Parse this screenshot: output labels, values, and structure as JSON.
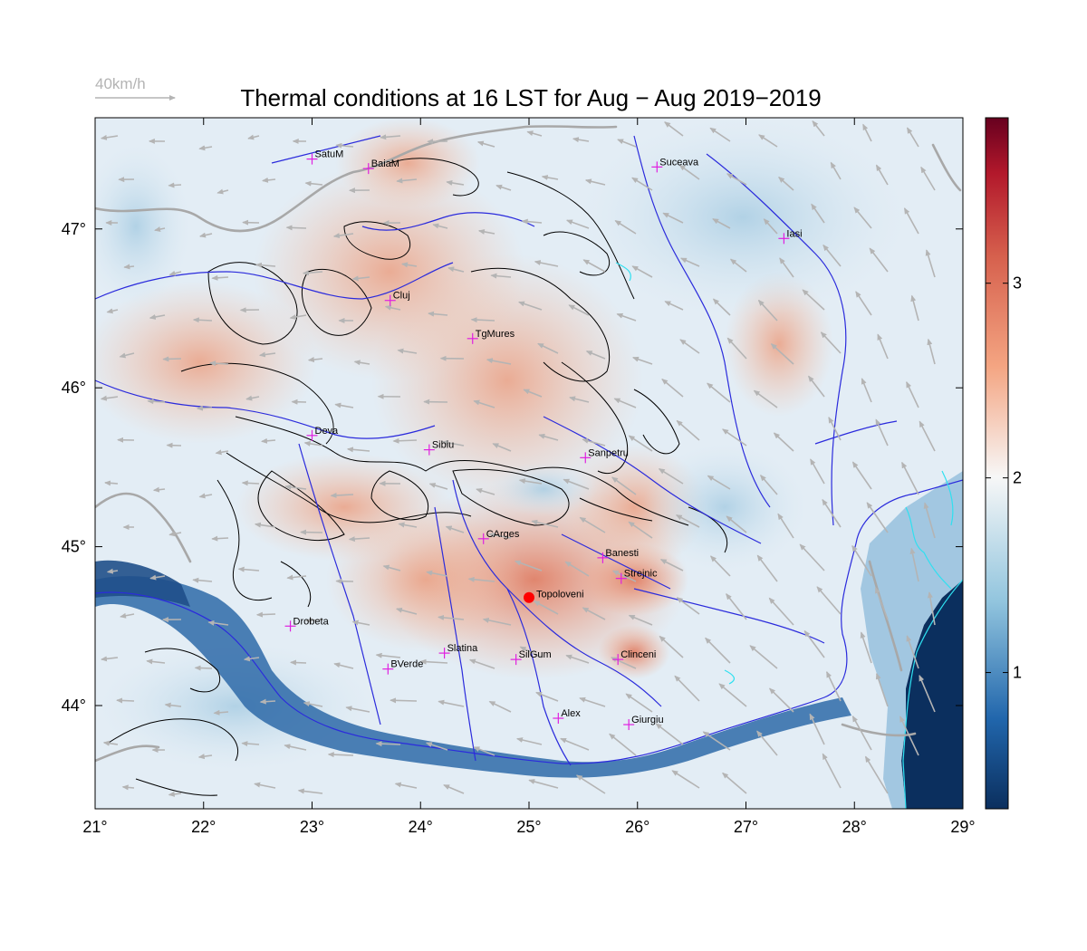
{
  "title": "Thermal conditions at 16 LST for Aug − Aug  2019−2019",
  "wind_legend": {
    "label": "40km/h"
  },
  "map": {
    "lon_range": [
      21,
      29
    ],
    "lat_range": [
      43.35,
      47.7
    ],
    "x_ticks": [
      "21°",
      "22°",
      "23°",
      "24°",
      "25°",
      "26°",
      "27°",
      "28°",
      "29°"
    ],
    "x_tick_values": [
      21,
      22,
      23,
      24,
      25,
      26,
      27,
      28,
      29
    ],
    "y_ticks": [
      "44°",
      "45°",
      "46°",
      "47°"
    ],
    "y_tick_values": [
      44,
      45,
      46,
      47
    ]
  },
  "colorbar": {
    "range": [
      0.3,
      3.85
    ],
    "ticks": [
      "1",
      "2",
      "3"
    ],
    "tick_values": [
      1,
      2,
      3
    ],
    "colors": [
      "#0b2f5e",
      "#2166ac",
      "#92c5de",
      "#f7f7f7",
      "#f4a582",
      "#d6604d",
      "#b2182b",
      "#67001f"
    ]
  },
  "stations": [
    {
      "name": "SatuM",
      "lon": 23.0,
      "lat": 47.44
    },
    {
      "name": "BaiaM",
      "lon": 23.52,
      "lat": 47.38
    },
    {
      "name": "Suceava",
      "lon": 26.18,
      "lat": 47.39
    },
    {
      "name": "Iasi",
      "lon": 27.35,
      "lat": 46.94
    },
    {
      "name": "Cluj",
      "lon": 23.72,
      "lat": 46.55
    },
    {
      "name": "TgMures",
      "lon": 24.48,
      "lat": 46.31
    },
    {
      "name": "Deva",
      "lon": 23.0,
      "lat": 45.7
    },
    {
      "name": "Sibiu",
      "lon": 24.08,
      "lat": 45.61
    },
    {
      "name": "Sanpetru",
      "lon": 25.52,
      "lat": 45.56
    },
    {
      "name": "CArges",
      "lon": 24.58,
      "lat": 45.05
    },
    {
      "name": "Banesti",
      "lon": 25.68,
      "lat": 44.93
    },
    {
      "name": "Strejnic",
      "lon": 25.85,
      "lat": 44.8
    },
    {
      "name": "Drobeta",
      "lon": 22.8,
      "lat": 44.5
    },
    {
      "name": "Slatina",
      "lon": 24.22,
      "lat": 44.33
    },
    {
      "name": "SilGum",
      "lon": 24.88,
      "lat": 44.29
    },
    {
      "name": "Clinceni",
      "lon": 25.82,
      "lat": 44.29
    },
    {
      "name": "BVerde",
      "lon": 23.7,
      "lat": 44.23
    },
    {
      "name": "Alex",
      "lon": 25.27,
      "lat": 43.92
    },
    {
      "name": "Giurgiu",
      "lon": 25.92,
      "lat": 43.88
    }
  ],
  "highlight_station": {
    "name": "Topoloveni",
    "lon": 25.0,
    "lat": 44.68
  }
}
